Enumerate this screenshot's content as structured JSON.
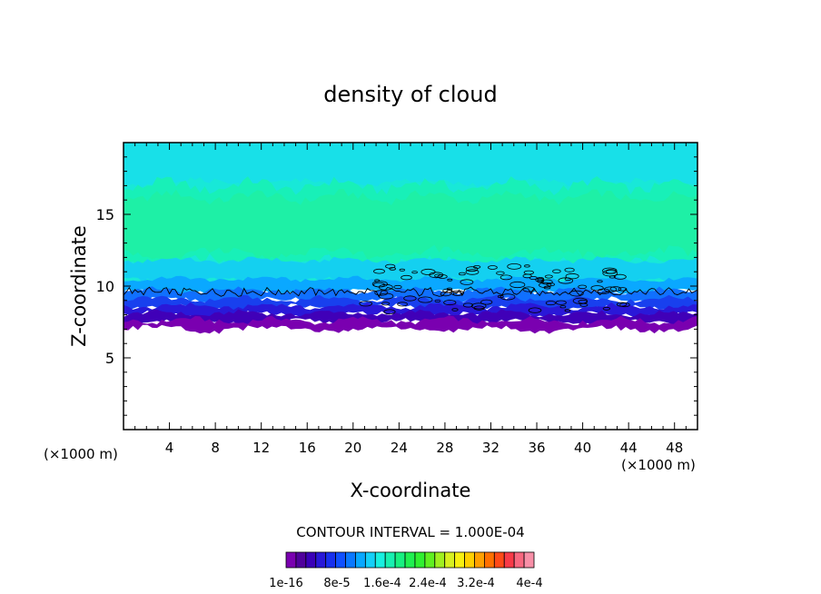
{
  "chart_data": {
    "type": "heatmap",
    "title": "density of cloud",
    "xlabel": "X-coordinate",
    "ylabel": "Z-coordinate",
    "x_unit": "(×1000 m)",
    "x_unit_right": "(×1000 m)",
    "xlim": [
      0,
      50
    ],
    "ylim": [
      0,
      20
    ],
    "x_ticks": [
      4,
      8,
      12,
      16,
      20,
      24,
      28,
      32,
      36,
      40,
      44,
      48
    ],
    "x_tick_labels": [
      "4",
      "8",
      "12",
      "16",
      "20",
      "24",
      "28",
      "32",
      "36",
      "40",
      "44",
      "48"
    ],
    "y_ticks": [
      5,
      10,
      15
    ],
    "y_tick_labels": [
      "5",
      "10",
      "15"
    ],
    "contour_interval_label": "CONTOUR INTERVAL = 1.000E-04",
    "colorbar": {
      "colors": [
        "#7a00b0",
        "#50009c",
        "#3a00b8",
        "#2818d8",
        "#1830ee",
        "#1050ff",
        "#0a78ff",
        "#08a8ff",
        "#14d0f8",
        "#18f0e0",
        "#18f0b0",
        "#18f080",
        "#20f050",
        "#30f030",
        "#60f020",
        "#a0f020",
        "#d8f020",
        "#f8f010",
        "#ffd000",
        "#ffa000",
        "#ff7000",
        "#ff4a18",
        "#f83a48",
        "#f86880",
        "#f890a8"
      ],
      "labels": [
        "1e-16",
        "8e-5",
        "1.6e-4",
        "2.4e-4",
        "3.2e-4",
        "4e-4"
      ]
    },
    "field_description_bands": [
      {
        "z_from": 0,
        "z_to": 7,
        "value": "none"
      },
      {
        "z_from": 7,
        "z_to": 7.5,
        "value": 1e-16
      },
      {
        "z_from": 7.5,
        "z_to": 10,
        "value": 6e-05
      },
      {
        "z_from": 10,
        "z_to": 12,
        "value": 0.00012
      },
      {
        "z_from": 12,
        "z_to": 17,
        "value": 0.00015
      },
      {
        "z_from": 17,
        "z_to": 20,
        "value": 0.00013
      }
    ]
  }
}
